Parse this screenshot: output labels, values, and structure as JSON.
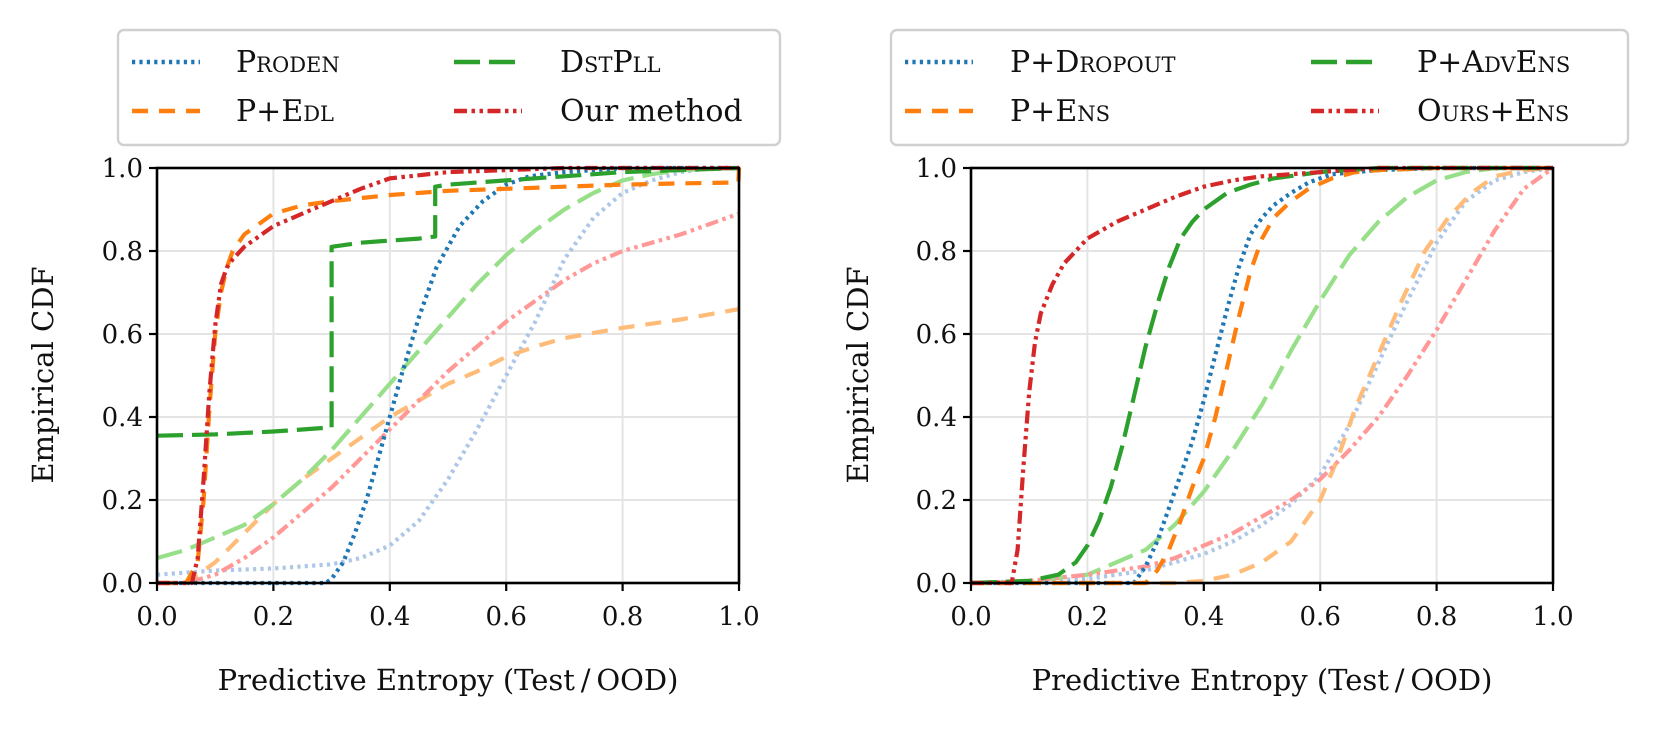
{
  "chart_data": [
    {
      "type": "line",
      "xlabel": "Predictive Entropy (Test / OOD)",
      "ylabel": "Empirical CDF",
      "xlim": [
        0.0,
        1.0
      ],
      "ylim": [
        0.0,
        1.0
      ],
      "xticks": [
        "0.0",
        "0.2",
        "0.4",
        "0.6",
        "0.8",
        "1.0"
      ],
      "yticks": [
        "0.0",
        "0.2",
        "0.4",
        "0.6",
        "0.8",
        "1.0"
      ],
      "grid": true,
      "legend": {
        "placement": "above",
        "columns": 2
      },
      "series": [
        {
          "name": "Proden",
          "split": "test",
          "color": "#1f77b4",
          "style": "dotted",
          "x": [
            0.0,
            0.29,
            0.3,
            0.32,
            0.34,
            0.36,
            0.38,
            0.4,
            0.42,
            0.45,
            0.48,
            0.52,
            0.56,
            0.6,
            0.64,
            0.7,
            0.8,
            0.9,
            1.0
          ],
          "y": [
            0.0,
            0.0,
            0.01,
            0.05,
            0.12,
            0.2,
            0.3,
            0.4,
            0.5,
            0.64,
            0.76,
            0.86,
            0.92,
            0.96,
            0.98,
            0.99,
            1.0,
            1.0,
            1.0
          ]
        },
        {
          "name": "P+Edl",
          "split": "test",
          "color": "#ff7f0e",
          "style": "dashed",
          "x": [
            0.0,
            0.05,
            0.07,
            0.08,
            0.09,
            0.1,
            0.11,
            0.12,
            0.13,
            0.15,
            0.18,
            0.2,
            0.25,
            0.3,
            0.4,
            0.5,
            0.6,
            0.7,
            0.8,
            0.9,
            0.999,
            1.0
          ],
          "y": [
            0.0,
            0.0,
            0.05,
            0.2,
            0.42,
            0.6,
            0.7,
            0.76,
            0.8,
            0.84,
            0.87,
            0.89,
            0.91,
            0.92,
            0.935,
            0.945,
            0.95,
            0.955,
            0.96,
            0.963,
            0.965,
            1.0
          ]
        },
        {
          "name": "DstPll",
          "split": "test",
          "color": "#2ca02c",
          "style": "long-dash",
          "x": [
            0.0,
            0.1,
            0.2,
            0.3,
            0.3,
            0.35,
            0.4,
            0.45,
            0.478,
            0.478,
            0.5,
            0.6,
            0.7,
            0.8,
            1.0
          ],
          "y": [
            0.355,
            0.358,
            0.365,
            0.375,
            0.81,
            0.82,
            0.825,
            0.83,
            0.835,
            0.955,
            0.96,
            0.97,
            0.98,
            0.99,
            1.0
          ]
        },
        {
          "name": "Our method",
          "split": "test",
          "color": "#d62728",
          "style": "dash-dot-dot",
          "x": [
            0.0,
            0.06,
            0.07,
            0.08,
            0.09,
            0.1,
            0.11,
            0.12,
            0.13,
            0.15,
            0.18,
            0.2,
            0.25,
            0.3,
            0.35,
            0.4,
            0.5,
            0.6,
            0.7,
            0.8,
            1.0
          ],
          "y": [
            0.0,
            0.0,
            0.06,
            0.25,
            0.46,
            0.62,
            0.72,
            0.76,
            0.78,
            0.81,
            0.84,
            0.86,
            0.89,
            0.92,
            0.95,
            0.975,
            0.99,
            0.995,
            1.0,
            1.0,
            1.0
          ]
        },
        {
          "name": "Proden",
          "split": "ood",
          "color": "#aec7e8",
          "style": "dotted",
          "x": [
            0.0,
            0.05,
            0.1,
            0.2,
            0.3,
            0.35,
            0.4,
            0.45,
            0.5,
            0.55,
            0.6,
            0.65,
            0.7,
            0.75,
            0.8,
            0.85,
            0.9,
            0.95,
            1.0
          ],
          "y": [
            0.02,
            0.025,
            0.03,
            0.035,
            0.045,
            0.06,
            0.09,
            0.15,
            0.25,
            0.37,
            0.5,
            0.63,
            0.78,
            0.88,
            0.94,
            0.97,
            0.99,
            1.0,
            1.0
          ]
        },
        {
          "name": "P+Edl",
          "split": "ood",
          "color": "#ffbb78",
          "style": "dashed",
          "x": [
            0.0,
            0.05,
            0.1,
            0.15,
            0.2,
            0.25,
            0.3,
            0.35,
            0.4,
            0.45,
            0.5,
            0.55,
            0.6,
            0.65,
            0.7,
            0.8,
            0.9,
            1.0
          ],
          "y": [
            0.0,
            0.0,
            0.05,
            0.12,
            0.19,
            0.25,
            0.3,
            0.35,
            0.4,
            0.44,
            0.48,
            0.51,
            0.545,
            0.57,
            0.59,
            0.615,
            0.635,
            0.66
          ]
        },
        {
          "name": "DstPll",
          "split": "ood",
          "color": "#98df8a",
          "style": "long-dash",
          "x": [
            0.0,
            0.05,
            0.1,
            0.15,
            0.2,
            0.25,
            0.3,
            0.35,
            0.4,
            0.45,
            0.5,
            0.55,
            0.6,
            0.65,
            0.7,
            0.75,
            0.8,
            0.85,
            0.9,
            1.0
          ],
          "y": [
            0.06,
            0.08,
            0.11,
            0.14,
            0.19,
            0.25,
            0.32,
            0.4,
            0.48,
            0.56,
            0.64,
            0.72,
            0.79,
            0.85,
            0.9,
            0.94,
            0.97,
            0.985,
            0.995,
            1.0
          ]
        },
        {
          "name": "Our method",
          "split": "ood",
          "color": "#ff9896",
          "style": "dash-dot-dot",
          "x": [
            0.0,
            0.05,
            0.1,
            0.15,
            0.2,
            0.25,
            0.3,
            0.35,
            0.4,
            0.45,
            0.5,
            0.55,
            0.6,
            0.65,
            0.7,
            0.75,
            0.8,
            0.9,
            1.0
          ],
          "y": [
            0.0,
            0.0,
            0.02,
            0.06,
            0.11,
            0.17,
            0.23,
            0.3,
            0.37,
            0.44,
            0.51,
            0.57,
            0.63,
            0.68,
            0.73,
            0.77,
            0.8,
            0.84,
            0.89
          ]
        }
      ]
    },
    {
      "type": "line",
      "xlabel": "Predictive Entropy (Test / OOD)",
      "ylabel": "Empirical CDF",
      "xlim": [
        0.0,
        1.0
      ],
      "ylim": [
        0.0,
        1.0
      ],
      "xticks": [
        "0.0",
        "0.2",
        "0.4",
        "0.6",
        "0.8",
        "1.0"
      ],
      "yticks": [
        "0.0",
        "0.2",
        "0.4",
        "0.6",
        "0.8",
        "1.0"
      ],
      "grid": true,
      "legend": {
        "placement": "above",
        "columns": 2
      },
      "series": [
        {
          "name": "P+Dropout",
          "split": "test",
          "color": "#1f77b4",
          "style": "dotted",
          "x": [
            0.0,
            0.28,
            0.3,
            0.32,
            0.34,
            0.36,
            0.38,
            0.4,
            0.42,
            0.44,
            0.46,
            0.48,
            0.5,
            0.52,
            0.55,
            0.58,
            0.62,
            0.7,
            0.8,
            1.0
          ],
          "y": [
            0.0,
            0.0,
            0.04,
            0.1,
            0.18,
            0.26,
            0.34,
            0.44,
            0.55,
            0.66,
            0.76,
            0.84,
            0.88,
            0.91,
            0.94,
            0.965,
            0.985,
            0.995,
            1.0,
            1.0
          ]
        },
        {
          "name": "P+Ens",
          "split": "test",
          "color": "#ff7f0e",
          "style": "dashed",
          "x": [
            0.0,
            0.3,
            0.32,
            0.34,
            0.36,
            0.38,
            0.4,
            0.42,
            0.44,
            0.46,
            0.48,
            0.5,
            0.52,
            0.55,
            0.58,
            0.62,
            0.66,
            0.7,
            0.8,
            1.0
          ],
          "y": [
            0.0,
            0.0,
            0.03,
            0.08,
            0.15,
            0.23,
            0.3,
            0.4,
            0.52,
            0.64,
            0.75,
            0.83,
            0.88,
            0.92,
            0.95,
            0.975,
            0.99,
            0.995,
            1.0,
            1.0
          ]
        },
        {
          "name": "P+AdvEns",
          "split": "test",
          "color": "#2ca02c",
          "style": "long-dash",
          "x": [
            0.0,
            0.1,
            0.15,
            0.18,
            0.2,
            0.22,
            0.24,
            0.26,
            0.28,
            0.3,
            0.32,
            0.34,
            0.36,
            0.38,
            0.4,
            0.44,
            0.48,
            0.52,
            0.6,
            0.7,
            1.0
          ],
          "y": [
            0.0,
            0.005,
            0.02,
            0.05,
            0.09,
            0.15,
            0.23,
            0.33,
            0.45,
            0.57,
            0.67,
            0.76,
            0.83,
            0.87,
            0.9,
            0.94,
            0.96,
            0.975,
            0.99,
            1.0,
            1.0
          ]
        },
        {
          "name": "Ours+Ens",
          "split": "test",
          "color": "#d62728",
          "style": "dash-dot-dot",
          "x": [
            0.0,
            0.07,
            0.08,
            0.09,
            0.1,
            0.11,
            0.12,
            0.14,
            0.16,
            0.18,
            0.2,
            0.25,
            0.3,
            0.35,
            0.4,
            0.45,
            0.5,
            0.6,
            0.7,
            0.8,
            1.0
          ],
          "y": [
            0.0,
            0.0,
            0.08,
            0.28,
            0.46,
            0.58,
            0.65,
            0.72,
            0.77,
            0.8,
            0.83,
            0.87,
            0.9,
            0.93,
            0.955,
            0.97,
            0.98,
            0.99,
            1.0,
            1.0,
            1.0
          ]
        },
        {
          "name": "P+Dropout",
          "split": "ood",
          "color": "#aec7e8",
          "style": "dotted",
          "x": [
            0.0,
            0.1,
            0.2,
            0.3,
            0.35,
            0.4,
            0.45,
            0.5,
            0.55,
            0.6,
            0.65,
            0.7,
            0.75,
            0.8,
            0.85,
            0.9,
            0.95,
            1.0
          ],
          "y": [
            0.0,
            0.005,
            0.01,
            0.03,
            0.05,
            0.07,
            0.1,
            0.14,
            0.19,
            0.26,
            0.38,
            0.53,
            0.68,
            0.82,
            0.92,
            0.97,
            0.99,
            1.0
          ]
        },
        {
          "name": "P+Ens",
          "split": "ood",
          "color": "#ffbb78",
          "style": "dashed",
          "x": [
            0.0,
            0.3,
            0.35,
            0.4,
            0.45,
            0.5,
            0.55,
            0.6,
            0.63,
            0.66,
            0.7,
            0.74,
            0.78,
            0.82,
            0.86,
            0.9,
            0.95,
            1.0
          ],
          "y": [
            0.0,
            0.0,
            0.0,
            0.005,
            0.02,
            0.05,
            0.1,
            0.2,
            0.3,
            0.42,
            0.55,
            0.68,
            0.8,
            0.88,
            0.94,
            0.98,
            0.995,
            1.0
          ]
        },
        {
          "name": "P+AdvEns",
          "split": "ood",
          "color": "#98df8a",
          "style": "long-dash",
          "x": [
            0.0,
            0.1,
            0.2,
            0.25,
            0.3,
            0.35,
            0.4,
            0.45,
            0.5,
            0.55,
            0.6,
            0.65,
            0.7,
            0.75,
            0.8,
            0.85,
            0.9,
            1.0
          ],
          "y": [
            0.0,
            0.005,
            0.02,
            0.05,
            0.08,
            0.14,
            0.22,
            0.32,
            0.43,
            0.56,
            0.68,
            0.79,
            0.87,
            0.93,
            0.97,
            0.99,
            1.0,
            1.0
          ]
        },
        {
          "name": "Ours+Ens",
          "split": "ood",
          "color": "#ff9896",
          "style": "dash-dot-dot",
          "x": [
            0.0,
            0.1,
            0.2,
            0.3,
            0.35,
            0.4,
            0.45,
            0.5,
            0.55,
            0.6,
            0.65,
            0.7,
            0.75,
            0.8,
            0.85,
            0.9,
            0.95,
            1.0
          ],
          "y": [
            0.0,
            0.005,
            0.02,
            0.04,
            0.06,
            0.09,
            0.12,
            0.16,
            0.2,
            0.25,
            0.32,
            0.4,
            0.5,
            0.61,
            0.73,
            0.85,
            0.95,
            1.0
          ]
        }
      ]
    }
  ]
}
